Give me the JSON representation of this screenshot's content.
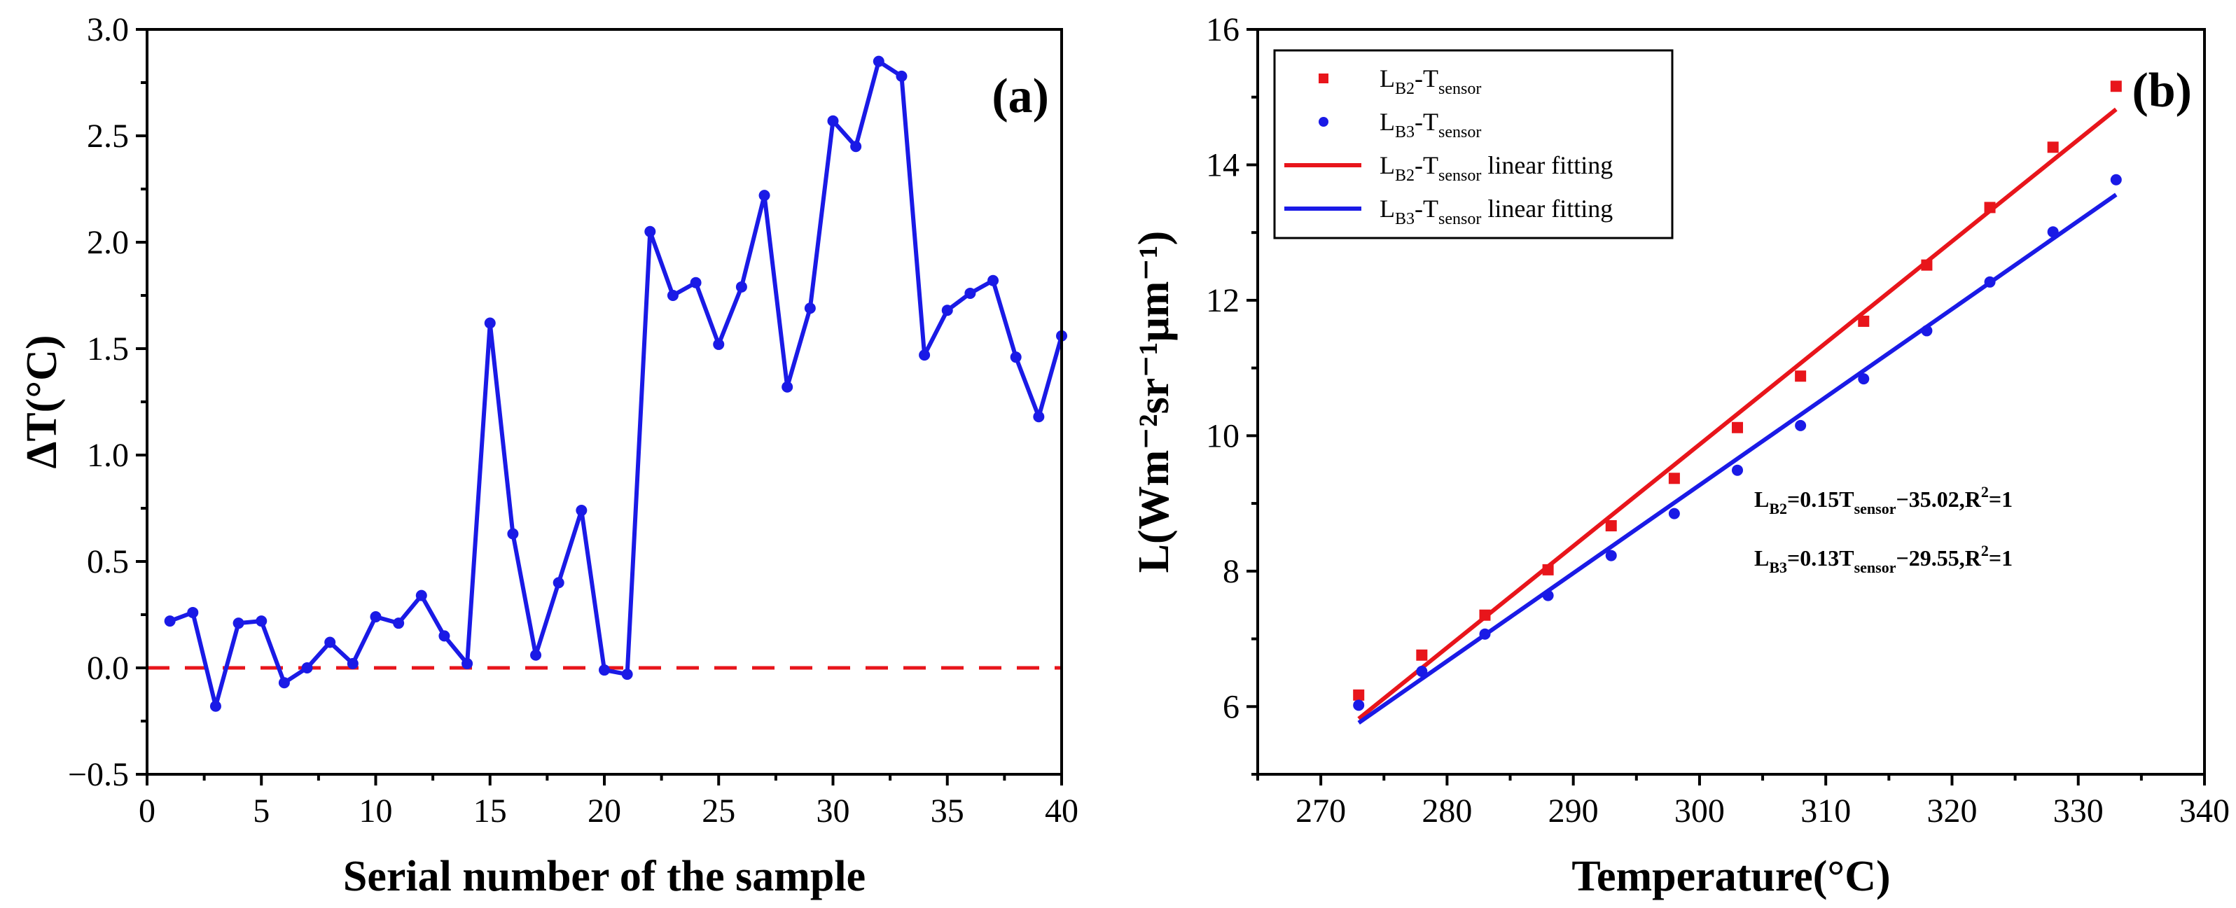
{
  "chart_data": [
    {
      "type": "line",
      "panel_label": "(a)",
      "title": "",
      "xlabel": "Serial number of the sample",
      "ylabel": "ΔT(°C)",
      "xlim": [
        0,
        40
      ],
      "ylim": [
        -0.5,
        3.0
      ],
      "xticks": [
        0,
        5,
        10,
        15,
        20,
        25,
        30,
        35,
        40
      ],
      "xtick_labels": [
        "0",
        "5",
        "10",
        "15",
        "20",
        "25",
        "30",
        "35",
        "40"
      ],
      "yticks": [
        -0.5,
        0.0,
        0.5,
        1.0,
        1.5,
        2.0,
        2.5,
        3.0
      ],
      "ytick_labels": [
        "−0.5",
        "0.0",
        "0.5",
        "1.0",
        "1.5",
        "2.0",
        "2.5",
        "3.0"
      ],
      "series": [
        {
          "name": "ΔT",
          "color": "#1a1ae6",
          "x": [
            1,
            2,
            3,
            4,
            5,
            6,
            7,
            8,
            9,
            10,
            11,
            12,
            13,
            14,
            15,
            16,
            17,
            18,
            19,
            20,
            21,
            22,
            23,
            24,
            25,
            26,
            27,
            28,
            29,
            30,
            31,
            32,
            33,
            34,
            35,
            36,
            37,
            38,
            39,
            40
          ],
          "values": [
            0.22,
            0.26,
            -0.18,
            0.21,
            0.22,
            -0.07,
            0.0,
            0.12,
            0.02,
            0.24,
            0.21,
            0.34,
            0.15,
            0.02,
            1.62,
            0.63,
            0.06,
            0.4,
            0.74,
            -0.01,
            -0.03,
            2.05,
            1.75,
            1.81,
            1.52,
            1.79,
            2.22,
            1.32,
            1.69,
            2.57,
            2.45,
            2.85,
            2.78,
            1.47,
            1.68,
            1.76,
            1.82,
            1.46,
            1.18,
            1.56
          ]
        }
      ],
      "reference_line": {
        "y": 0.0,
        "style": "dashed",
        "color": "#e8151b"
      }
    },
    {
      "type": "scatter",
      "panel_label": "(b)",
      "title": "",
      "xlabel": "Temperature(°C)",
      "ylabel": "L(Wm⁻²sr⁻¹μm⁻¹)",
      "xlim": [
        265,
        340
      ],
      "ylim": [
        5,
        16
      ],
      "xticks": [
        270,
        280,
        290,
        300,
        310,
        320,
        330,
        340
      ],
      "xtick_labels": [
        "270",
        "280",
        "290",
        "300",
        "310",
        "320",
        "330",
        "340"
      ],
      "yticks": [
        6,
        8,
        10,
        12,
        14,
        16
      ],
      "ytick_labels": [
        "6",
        "8",
        "10",
        "12",
        "14",
        "16"
      ],
      "x": [
        273,
        278,
        283,
        288,
        293,
        298,
        303,
        308,
        313,
        318,
        323,
        328,
        333
      ],
      "series": [
        {
          "name": "LB2-Tsensor",
          "label_main": "L",
          "label_sub": "B2",
          "label_mid": "-T",
          "label_sub2": "sensor",
          "marker": "square",
          "color": "#e8151b",
          "values": [
            6.17,
            6.76,
            7.35,
            8.02,
            8.67,
            9.37,
            10.12,
            10.88,
            11.69,
            12.52,
            13.37,
            14.26,
            15.16
          ]
        },
        {
          "name": "LB3-Tsensor",
          "label_main": "L",
          "label_sub": "B3",
          "label_mid": "-T",
          "label_sub2": "sensor",
          "marker": "circle",
          "color": "#1a1ae6",
          "values": [
            6.02,
            6.52,
            7.07,
            7.64,
            8.23,
            8.85,
            9.49,
            10.15,
            10.84,
            11.55,
            12.27,
            13.01,
            13.78
          ]
        }
      ],
      "fits": [
        {
          "name": "LB2-Tsensor linear fitting",
          "label_main": "L",
          "label_sub": "B2",
          "label_mid": "-T",
          "label_sub2": "sensor",
          "label_tail": " linear fitting",
          "color": "#e8151b",
          "x_range": [
            273,
            333
          ],
          "y_range": [
            5.82,
            14.82
          ]
        },
        {
          "name": "LB3-Tsensor linear fitting",
          "label_main": "L",
          "label_sub": "B3",
          "label_mid": "-T",
          "label_sub2": "sensor",
          "label_tail": " linear fitting",
          "color": "#1a1ae6",
          "x_range": [
            273,
            333
          ],
          "y_range": [
            5.76,
            13.56
          ]
        }
      ],
      "annotations": [
        {
          "main": "L",
          "sub": "B2",
          "mid": "=0.15T",
          "sub2": "sensor",
          "tail": "−35.02,R",
          "sup": "2",
          "end": "=1"
        },
        {
          "main": "L",
          "sub": "B3",
          "mid": "=0.13T",
          "sub2": "sensor",
          "tail": "−29.55,R",
          "sup": "2",
          "end": "=1"
        }
      ],
      "legend_position": "top-left"
    }
  ]
}
